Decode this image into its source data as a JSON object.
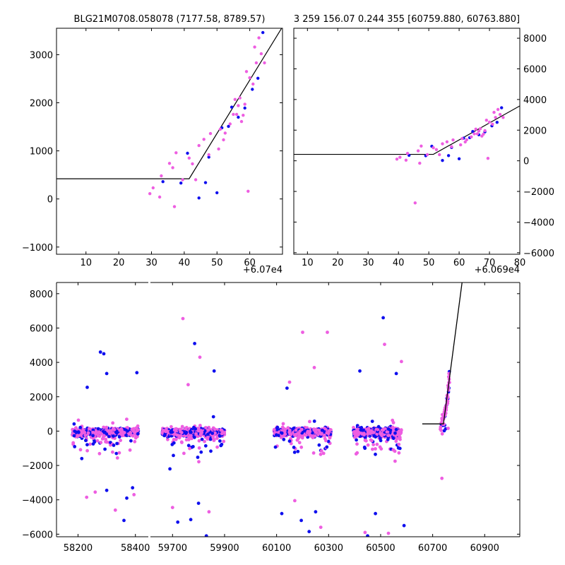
{
  "chart_data": [
    {
      "id": "top-left",
      "type": "scatter",
      "title": "BLG21M0708.058078 (7177.58, 8789.57)",
      "xlabel": "",
      "ylabel": "",
      "xlim": [
        60701,
        60770
      ],
      "ylim": [
        -1150,
        3550
      ],
      "x_offset_label": "+6.07e4",
      "x_ticks": [
        10,
        20,
        30,
        40,
        50,
        60
      ],
      "y_ticks": [
        -1000,
        0,
        1000,
        2000,
        3000
      ],
      "grid": false,
      "model_line": [
        [
          60701,
          420
        ],
        [
          60741.5,
          420
        ],
        [
          60770,
          3580
        ]
      ],
      "series": [
        {
          "color": "#0f0fee",
          "points": [
            [
              60733.5,
              360
            ],
            [
              60739,
              330
            ],
            [
              60741,
              950
            ],
            [
              60744.5,
              20
            ],
            [
              60746.5,
              340
            ],
            [
              60747.5,
              870
            ],
            [
              60750,
              130
            ],
            [
              60751.5,
              1480
            ],
            [
              60753.5,
              1510
            ],
            [
              60754.5,
              1910
            ],
            [
              60756.5,
              1700
            ],
            [
              60758.5,
              1890
            ],
            [
              60760.8,
              2280
            ],
            [
              60762.5,
              2510
            ],
            [
              60764,
              3460
            ]
          ]
        },
        {
          "color": "#ee5ee1",
          "points": [
            [
              60729.5,
              110
            ],
            [
              60730.5,
              230
            ],
            [
              60732.5,
              40
            ],
            [
              60733,
              480
            ],
            [
              60735.5,
              740
            ],
            [
              60736.5,
              650
            ],
            [
              60737,
              -160
            ],
            [
              60737.5,
              960
            ],
            [
              60739.5,
              400
            ],
            [
              60741.5,
              850
            ],
            [
              60742.5,
              730
            ],
            [
              60743.5,
              400
            ],
            [
              60744.5,
              1110
            ],
            [
              60746,
              1240
            ],
            [
              60747.5,
              920
            ],
            [
              60748,
              1360
            ],
            [
              60750.5,
              1040
            ],
            [
              60751,
              1450
            ],
            [
              60752,
              1230
            ],
            [
              60752.5,
              1370
            ],
            [
              60754,
              1560
            ],
            [
              60755,
              1760
            ],
            [
              60755.5,
              2070
            ],
            [
              60756,
              1760
            ],
            [
              60756.5,
              1940
            ],
            [
              60757,
              2100
            ],
            [
              60757.5,
              1610
            ],
            [
              60758,
              1740
            ],
            [
              60758.5,
              1970
            ],
            [
              60759,
              2650
            ],
            [
              60759.5,
              160
            ],
            [
              60760,
              2520
            ],
            [
              60761,
              2390
            ],
            [
              60761.5,
              3160
            ],
            [
              60762,
              2830
            ],
            [
              60763.5,
              3020
            ],
            [
              60764.5,
              2830
            ],
            [
              60762.8,
              3350
            ]
          ]
        }
      ]
    },
    {
      "id": "top-right",
      "type": "scatter",
      "title": "3 259 156.07 0.244 355 [60759.880, 60763.880]",
      "xlabel": "",
      "ylabel": "",
      "xlim": [
        60695.5,
        60770
      ],
      "ylim": [
        -6100,
        8650
      ],
      "x_offset_label": "+6.069e4",
      "x_ticks": [
        10,
        20,
        30,
        40,
        50,
        60,
        70,
        80
      ],
      "y_ticks": [
        -6000,
        -4000,
        -2000,
        0,
        2000,
        4000,
        6000,
        8000
      ],
      "grid": false,
      "model_line": [
        [
          60695.5,
          420
        ],
        [
          60741.5,
          420
        ],
        [
          60770,
          3580
        ]
      ],
      "series": [
        {
          "color": "#0f0fee",
          "points": [
            [
              60733.5,
              360
            ],
            [
              60739,
              330
            ],
            [
              60741,
              950
            ],
            [
              60744.5,
              20
            ],
            [
              60746.5,
              340
            ],
            [
              60747.5,
              870
            ],
            [
              60750,
              130
            ],
            [
              60751.5,
              1480
            ],
            [
              60753.5,
              1510
            ],
            [
              60754.5,
              1910
            ],
            [
              60756.5,
              1700
            ],
            [
              60758.5,
              1890
            ],
            [
              60760.8,
              2280
            ],
            [
              60762.5,
              2510
            ],
            [
              60764,
              3460
            ]
          ]
        },
        {
          "color": "#ee5ee1",
          "points": [
            [
              60729.5,
              110
            ],
            [
              60730.5,
              230
            ],
            [
              60732.5,
              40
            ],
            [
              60733,
              480
            ],
            [
              60735.5,
              -2750
            ],
            [
              60736.5,
              650
            ],
            [
              60737,
              -160
            ],
            [
              60737.5,
              960
            ],
            [
              60739.5,
              400
            ],
            [
              60741.5,
              850
            ],
            [
              60742.5,
              730
            ],
            [
              60743.5,
              400
            ],
            [
              60744.5,
              1110
            ],
            [
              60746,
              1240
            ],
            [
              60747.5,
              920
            ],
            [
              60748,
              1360
            ],
            [
              60750.5,
              1040
            ],
            [
              60751,
              1450
            ],
            [
              60752,
              1230
            ],
            [
              60752.5,
              1370
            ],
            [
              60754,
              1560
            ],
            [
              60755,
              1760
            ],
            [
              60755.5,
              2070
            ],
            [
              60756,
              1760
            ],
            [
              60756.5,
              1940
            ],
            [
              60757,
              2100
            ],
            [
              60757.5,
              1610
            ],
            [
              60758,
              1740
            ],
            [
              60758.5,
              1970
            ],
            [
              60759,
              2650
            ],
            [
              60759.5,
              160
            ],
            [
              60760,
              2520
            ],
            [
              60761,
              2390
            ],
            [
              60761.5,
              3160
            ],
            [
              60762,
              2830
            ],
            [
              60763.5,
              3020
            ],
            [
              60764.5,
              2830
            ],
            [
              60762.8,
              3350
            ]
          ]
        }
      ]
    },
    {
      "id": "bottom",
      "type": "scatter",
      "title": "",
      "xlabel": "",
      "ylabel": "",
      "broken_x_axis": true,
      "segments": [
        {
          "xlim": [
            58125,
            58445
          ],
          "x_ticks": [
            58200,
            58400
          ]
        },
        {
          "xlim": [
            59615,
            61035
          ],
          "x_ticks": [
            59700,
            59900,
            60100,
            60300,
            60500,
            60700,
            60900
          ]
        }
      ],
      "ylim": [
        -6150,
        8650
      ],
      "y_ticks": [
        -6000,
        -4000,
        -2000,
        0,
        2000,
        4000,
        6000,
        8000
      ],
      "grid": false,
      "model_line": [
        [
          60660,
          420
        ],
        [
          60741.5,
          420
        ],
        [
          60813,
          8650
        ]
      ],
      "seasons": [
        {
          "range": [
            58180,
            58410
          ],
          "outliers_blue": [
            [
              58278,
              4600
            ],
            [
              58232,
              2550
            ],
            [
              58300,
              3350
            ],
            [
              58405,
              3400
            ],
            [
              58370,
              -3900
            ],
            [
              58300,
              -3450
            ],
            [
              58390,
              -3300
            ],
            [
              58360,
              -5200
            ],
            [
              58290,
              4500
            ]
          ],
          "outliers_pink": [
            [
              58330,
              -4600
            ],
            [
              58230,
              -3850
            ],
            [
              58395,
              -3700
            ],
            [
              58260,
              -3550
            ]
          ]
        },
        {
          "range": [
            59660,
            59900
          ],
          "outliers_blue": [
            [
              59785,
              5100
            ],
            [
              59860,
              3500
            ],
            [
              59720,
              -5300
            ],
            [
              59830,
              -6100
            ],
            [
              59770,
              -5150
            ],
            [
              59800,
              -4200
            ],
            [
              59690,
              -2200
            ]
          ],
          "outliers_pink": [
            [
              59740,
              6550
            ],
            [
              59805,
              4300
            ],
            [
              59760,
              2700
            ],
            [
              59700,
              -4450
            ],
            [
              59840,
              -4700
            ]
          ]
        },
        {
          "range": [
            60090,
            60310
          ],
          "outliers_blue": [
            [
              60140,
              2500
            ],
            [
              60195,
              -5200
            ],
            [
              60250,
              -4700
            ],
            [
              60120,
              -4800
            ],
            [
              60225,
              -5850
            ]
          ],
          "outliers_pink": [
            [
              60200,
              5750
            ],
            [
              60295,
              5750
            ],
            [
              60245,
              3700
            ],
            [
              60150,
              2850
            ],
            [
              60270,
              -5600
            ],
            [
              60170,
              -4050
            ]
          ]
        },
        {
          "range": [
            60395,
            60580
          ],
          "outliers_blue": [
            [
              60510,
              6600
            ],
            [
              60420,
              3500
            ],
            [
              60560,
              3350
            ],
            [
              60450,
              -6100
            ],
            [
              60590,
              -5500
            ],
            [
              60480,
              -4800
            ]
          ],
          "outliers_pink": [
            [
              60515,
              5050
            ],
            [
              60580,
              4050
            ],
            [
              60440,
              -5900
            ],
            [
              60530,
              -5950
            ]
          ]
        }
      ],
      "rise": {
        "points_from": "top-left",
        "extra_pink": [
          [
            60735.5,
            -2750
          ]
        ]
      }
    }
  ],
  "colors": {
    "blue": "#0f0fee",
    "pink": "#ee5ee1",
    "axis": "#000000",
    "model": "#000000"
  }
}
